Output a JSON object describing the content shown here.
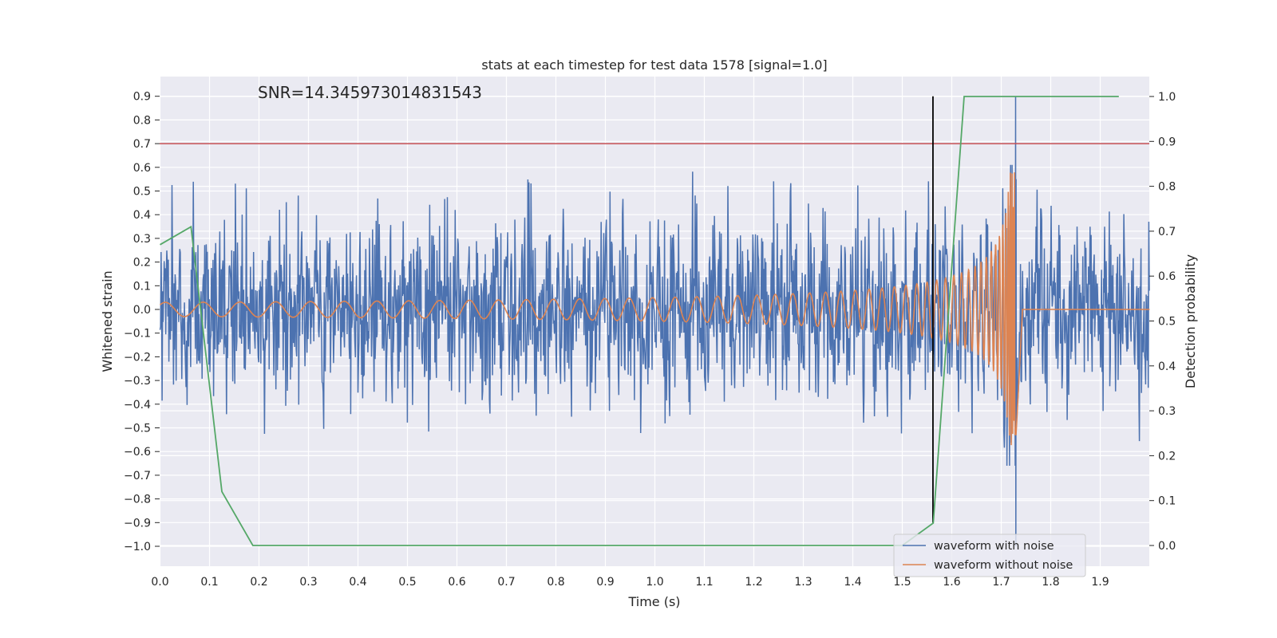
{
  "chart_data": {
    "type": "line",
    "title": "stats at each timestep for test data 1578 [signal=1.0]",
    "annotation": "SNR=14.345973014831543",
    "xlabel": "Time (s)",
    "ylabel_left": "Whitened strain",
    "ylabel_right": "Detection probability",
    "xlim": [
      0.0,
      2.0
    ],
    "ylim_left": [
      -1.09,
      0.98
    ],
    "ylim_right": [
      -0.05,
      1.035
    ],
    "x_ticks": [
      0.0,
      0.1,
      0.2,
      0.3,
      0.4,
      0.5,
      0.6,
      0.7,
      0.8,
      0.9,
      1.0,
      1.1,
      1.2,
      1.3,
      1.4,
      1.5,
      1.6,
      1.7,
      1.8,
      1.9
    ],
    "left_ticks": [
      0.9,
      0.8,
      0.7,
      0.6,
      0.5,
      0.4,
      0.3,
      0.2,
      0.1,
      0.0,
      -0.1,
      -0.2,
      -0.3,
      -0.4,
      -0.5,
      -0.6,
      -0.7,
      -0.8,
      -0.9,
      -1.0
    ],
    "right_ticks": [
      1.0,
      0.9,
      0.8,
      0.7,
      0.6,
      0.5,
      0.4,
      0.3,
      0.2,
      0.1,
      0.0
    ],
    "grid": true,
    "legend_position": "lower-right",
    "threshold_line": {
      "axis": "left",
      "y": 0.7,
      "color": "#c44e52"
    },
    "vertical_marker": {
      "x": 1.562,
      "ymin": -0.9,
      "ymax": 0.9,
      "color": "#000000"
    },
    "series": [
      {
        "name": "waveform with noise",
        "axis": "left",
        "color": "#4c72b0",
        "style": "dense noise, amplitude about ±0.45, spikes up to 0.9 / -1.0 near t=1.73",
        "x_range": [
          0.0,
          2.0
        ]
      },
      {
        "name": "waveform without noise",
        "axis": "left",
        "color": "#dd8452",
        "style": "chirp, frequency rising, merger near t=1.73",
        "x_range": [
          0.0,
          2.0
        ],
        "merger_time": 1.73,
        "initial_amplitude": 0.03,
        "peak_amplitude": 0.58
      },
      {
        "name": "",
        "axis": "right",
        "color": "#55a868",
        "x": [
          0.0,
          0.0625,
          0.125,
          0.1875,
          0.25,
          1.5,
          1.5625,
          1.625,
          1.9375
        ],
        "values": [
          0.67,
          0.71,
          0.12,
          0.0,
          0.0,
          0.0,
          0.05,
          1.0,
          1.0
        ]
      }
    ]
  }
}
